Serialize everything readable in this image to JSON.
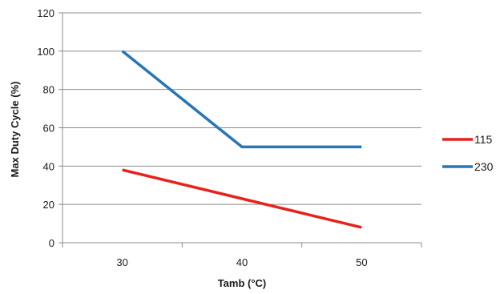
{
  "chart_data": {
    "type": "line",
    "title": "",
    "xlabel": "Tamb (°C)",
    "ylabel": "Max Duty Cycle (%)",
    "x": [
      30,
      40,
      50
    ],
    "x_tick_labels": [
      "30",
      "40",
      "50"
    ],
    "ylim": [
      0,
      120
    ],
    "y_ticks": [
      0,
      20,
      40,
      60,
      80,
      100,
      120
    ],
    "grid": "horizontal",
    "legend_position": "right",
    "series": [
      {
        "name": "115",
        "color": "#e8211b",
        "values": [
          38,
          23,
          8
        ]
      },
      {
        "name": "230",
        "color": "#2676b8",
        "values": [
          100,
          50,
          50
        ]
      }
    ]
  }
}
